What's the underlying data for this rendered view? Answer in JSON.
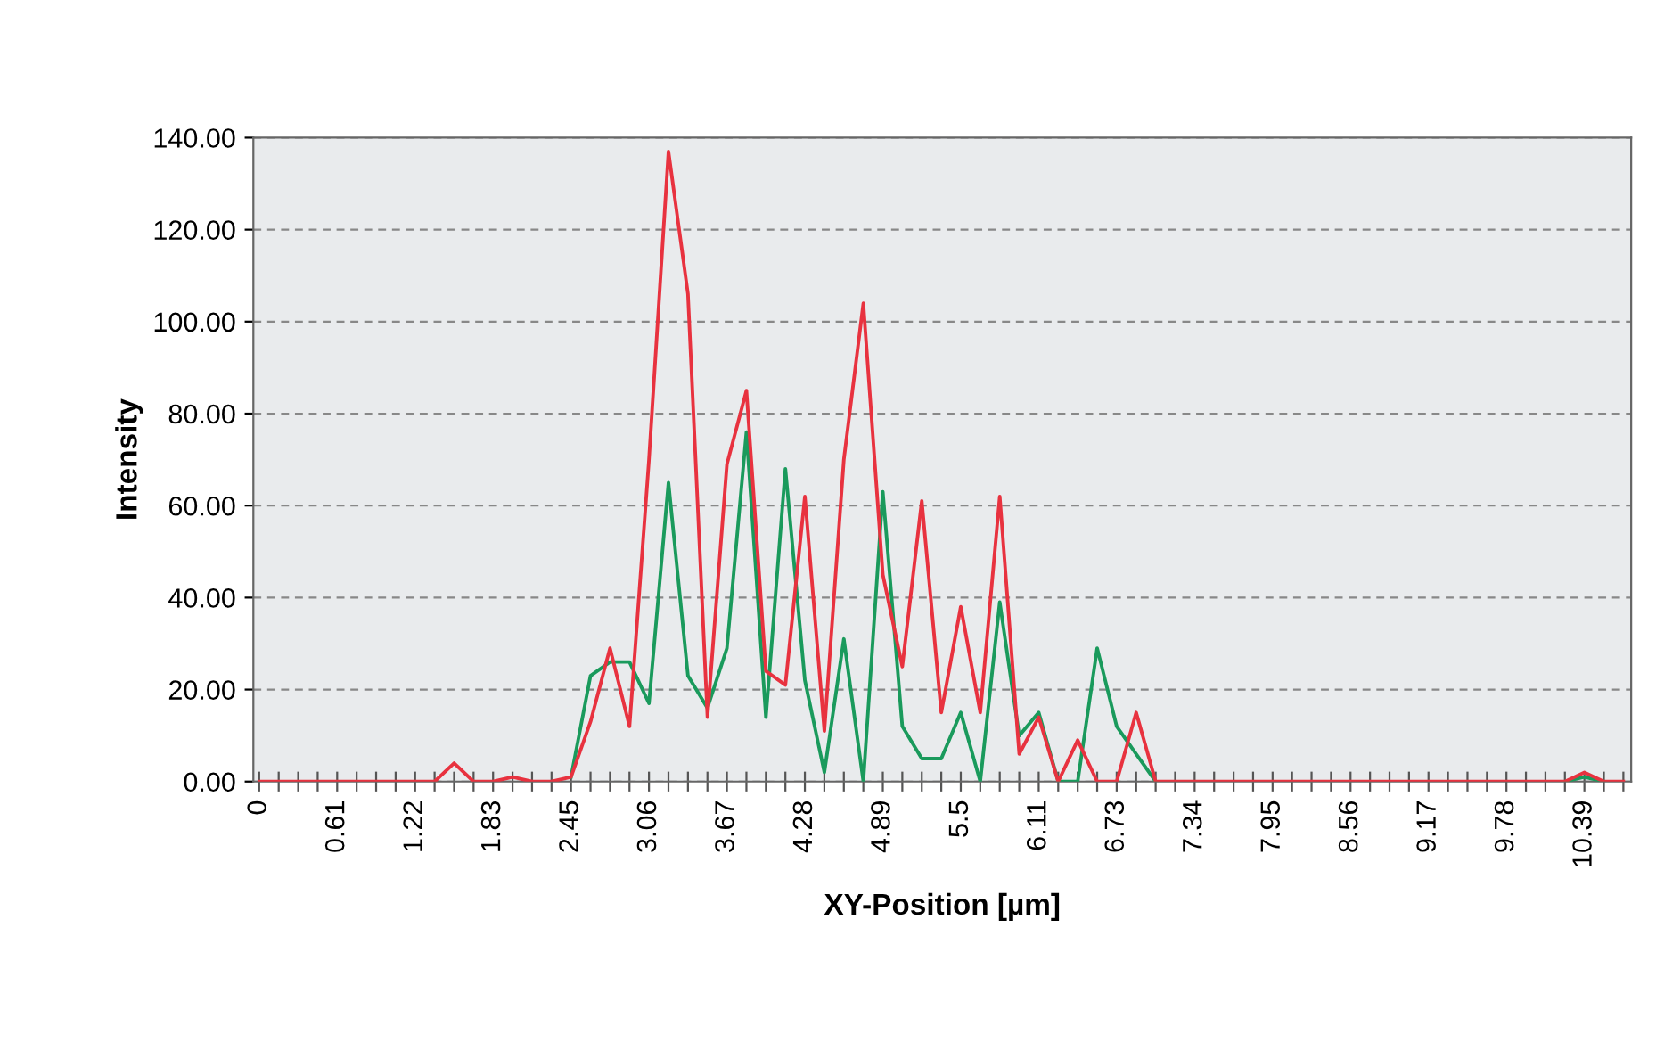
{
  "chart_data": {
    "type": "line",
    "xlabel": "XY-Position [µm]",
    "ylabel": "Intensity",
    "categories": [
      "0",
      null,
      null,
      null,
      "0.61",
      null,
      null,
      null,
      "1.22",
      null,
      null,
      null,
      "1.83",
      null,
      null,
      null,
      "2.45",
      null,
      null,
      null,
      "3.06",
      null,
      null,
      null,
      "3.67",
      null,
      null,
      null,
      "4.28",
      null,
      null,
      null,
      "4.89",
      null,
      null,
      null,
      "5.5",
      null,
      null,
      null,
      "6.11",
      null,
      null,
      null,
      "6.73",
      null,
      null,
      null,
      "7.34",
      null,
      null,
      null,
      "7.95",
      null,
      null,
      null,
      "8.56",
      null,
      null,
      null,
      "9.17",
      null,
      null,
      null,
      "9.78",
      null,
      null,
      null,
      "10.39",
      null,
      null
    ],
    "series": [
      {
        "color": "#1a9a5c",
        "values": [
          null,
          null,
          null,
          null,
          null,
          null,
          null,
          null,
          null,
          null,
          null,
          null,
          null,
          null,
          null,
          null,
          1,
          23,
          26,
          26,
          17,
          65,
          23,
          16,
          29,
          76,
          14,
          68,
          22,
          2,
          31,
          0,
          63,
          12,
          5,
          5,
          15,
          0,
          39,
          10,
          15,
          0,
          0,
          29,
          12,
          6,
          0,
          null,
          null,
          null,
          null,
          null,
          null,
          null,
          null,
          null,
          null,
          null,
          null,
          null,
          null,
          null,
          null,
          null,
          null,
          null,
          null,
          0,
          1,
          0,
          null
        ]
      },
      {
        "color": "#e8323f",
        "values": [
          0,
          0,
          0,
          0,
          0,
          0,
          0,
          0,
          0,
          0,
          4,
          0,
          0,
          1,
          0,
          0,
          1,
          13,
          29,
          12,
          70,
          137,
          106,
          14,
          69,
          85,
          24,
          21,
          62,
          11,
          70,
          104,
          45,
          25,
          61,
          15,
          38,
          15,
          62,
          6,
          14,
          0,
          9,
          0,
          0,
          15,
          0,
          0,
          0,
          0,
          0,
          0,
          0,
          0,
          0,
          0,
          0,
          0,
          0,
          0,
          0,
          0,
          0,
          0,
          0,
          0,
          0,
          0,
          2,
          0,
          0
        ]
      }
    ],
    "ylim": [
      0,
      140
    ],
    "yticks": [
      {
        "value": 0,
        "label": "0.00"
      },
      {
        "value": 20,
        "label": "20.00"
      },
      {
        "value": 40,
        "label": "40.00"
      },
      {
        "value": 60,
        "label": "60.00"
      },
      {
        "value": 80,
        "label": "80.00"
      },
      {
        "value": 100,
        "label": "100.00"
      },
      {
        "value": 120,
        "label": "120.00"
      },
      {
        "value": 140,
        "label": "140.00"
      }
    ],
    "grid": "y",
    "marker": "none",
    "line_style": "solid",
    "legend": false
  }
}
